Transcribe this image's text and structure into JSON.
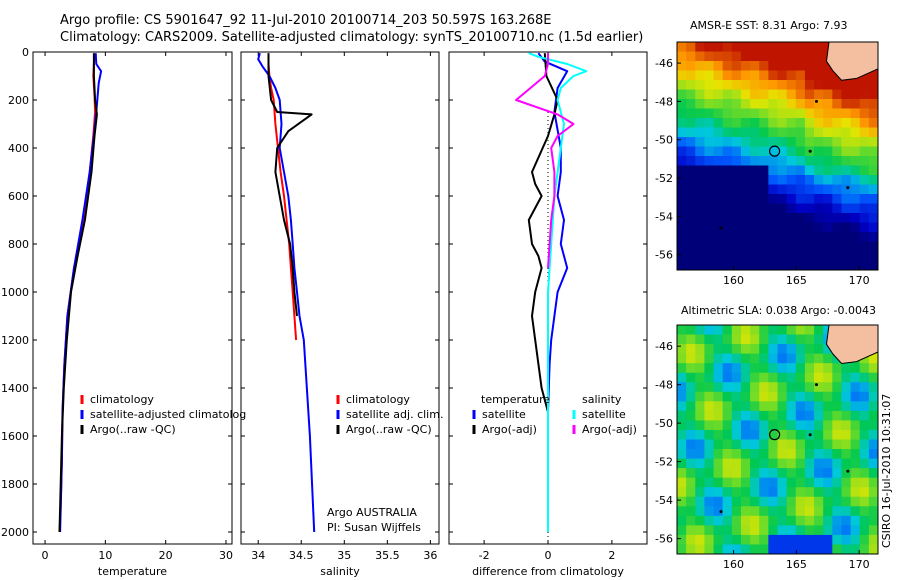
{
  "titles": {
    "line1": "Argo profile: CS 5901647_92 11-Jul-2010 20100714_203 50.597S 163.268E",
    "line2": "Climatology: CARS2009. Satellite-adjusted climatology: synTS_20100710.nc (1.5d earlier)"
  },
  "colors": {
    "climatology": "#ff0000",
    "satellite": "#0000ff",
    "argo": "#000000",
    "sal_satellite": "#00ffff",
    "sal_argo": "#ff00ff",
    "land": "#f4bfa0",
    "marker": "#000000"
  },
  "chart_data": [
    {
      "type": "line",
      "xlabel": "temperature",
      "ylabel": "",
      "xlim": [
        -2,
        31
      ],
      "ylim": [
        2050,
        0
      ],
      "yreversed": true,
      "xticks": [
        0,
        10,
        20,
        30
      ],
      "xtick_labels": [
        "0",
        "10",
        "20",
        "30"
      ],
      "yticks": [
        0,
        200,
        400,
        600,
        800,
        1000,
        1200,
        1400,
        1600,
        1800,
        2000
      ],
      "ytick_labels": [
        "0",
        "200",
        "400",
        "600",
        "800",
        "1000",
        "1200",
        "1400",
        "1600",
        "1800",
        "2000"
      ],
      "legend": {
        "position": "lower-center",
        "entries": [
          "climatology",
          "satellite-adjusted climatolog",
          "Argo(..raw -QC)"
        ]
      },
      "series": [
        {
          "name": "climatology",
          "color": "#ff0000",
          "x": [
            8.2,
            8.1,
            8.0,
            8.2,
            8.3,
            8.0,
            7.4,
            6.3,
            4.8,
            3.7,
            3.2,
            2.9,
            2.8,
            2.6,
            2.4
          ],
          "y": [
            5,
            50,
            100,
            180,
            250,
            350,
            500,
            700,
            900,
            1100,
            1300,
            1500,
            1700,
            1900,
            2000
          ]
        },
        {
          "name": "satellite-adjusted climatolog",
          "color": "#0000ff",
          "x": [
            8.4,
            8.5,
            9.3,
            8.9,
            8.5,
            8.1,
            7.4,
            6.2,
            4.8,
            3.7,
            3.2,
            2.9,
            2.8,
            2.6,
            2.5
          ],
          "y": [
            5,
            50,
            80,
            130,
            250,
            350,
            500,
            700,
            900,
            1100,
            1300,
            1500,
            1700,
            1900,
            2000
          ]
        },
        {
          "name": "Argo(..raw -QC)",
          "color": "#000000",
          "x": [
            8.1,
            8.1,
            8.3,
            8.6,
            8.2,
            7.7,
            6.6,
            5.4,
            4.3,
            3.6,
            3.1,
            2.8,
            2.6,
            2.4
          ],
          "y": [
            5,
            100,
            200,
            260,
            350,
            500,
            700,
            850,
            1000,
            1200,
            1400,
            1600,
            1800,
            2000
          ]
        }
      ]
    },
    {
      "type": "line",
      "xlabel": "salinity",
      "ylabel": "",
      "xlim": [
        33.8,
        36.1
      ],
      "ylim": [
        2050,
        0
      ],
      "yreversed": true,
      "xticks": [
        34,
        34.5,
        35,
        35.5,
        36
      ],
      "xtick_labels": [
        "34",
        "34.5",
        "35",
        "35.5",
        "36"
      ],
      "legend": {
        "position": "lower-right",
        "entries": [
          "climatology",
          "satellite adj. clim.",
          "Argo(..raw -QC)"
        ]
      },
      "annotation": {
        "line1": "Argo AUSTRALIA",
        "line2": "PI: Susan Wijffels"
      },
      "series": [
        {
          "name": "climatology",
          "color": "#ff0000",
          "x": [
            34.12,
            34.12,
            34.13,
            34.15,
            34.18,
            34.2,
            34.23,
            34.26,
            34.3,
            34.33,
            34.36,
            34.38,
            34.4,
            34.42,
            34.44
          ],
          "y": [
            5,
            50,
            100,
            150,
            200,
            300,
            400,
            500,
            600,
            700,
            800,
            900,
            1000,
            1100,
            1200
          ]
        },
        {
          "name": "satellite adj. clim.",
          "color": "#0000ff",
          "x": [
            34.02,
            34.0,
            34.05,
            34.13,
            34.2,
            34.25,
            34.27,
            34.25,
            34.3,
            34.35,
            34.38,
            34.4,
            34.42,
            34.45,
            34.48,
            34.53,
            34.6,
            34.65
          ],
          "y": [
            5,
            30,
            60,
            100,
            150,
            200,
            300,
            400,
            500,
            600,
            700,
            800,
            900,
            1000,
            1100,
            1200,
            1600,
            2000
          ]
        },
        {
          "name": "Argo(..raw -QC)",
          "color": "#000000",
          "x": [
            34.12,
            34.12,
            34.15,
            34.22,
            34.62,
            34.35,
            34.22,
            34.2,
            34.25,
            34.3,
            34.37,
            34.4,
            34.42,
            34.45
          ],
          "y": [
            5,
            100,
            200,
            250,
            260,
            330,
            400,
            500,
            600,
            700,
            800,
            900,
            1000,
            1100
          ]
        }
      ]
    },
    {
      "type": "line",
      "xlabel": "difference from climatology",
      "ylabel": "",
      "xlim": [
        -3.1,
        3.1
      ],
      "ylim": [
        2050,
        0
      ],
      "yreversed": true,
      "xticks": [
        -2,
        0,
        2
      ],
      "xtick_labels": [
        "-2",
        "0",
        "2"
      ],
      "legend": {
        "position": "lower-right",
        "entries": [
          "temperature",
          "satellite",
          "Argo(-adj)",
          "salinity",
          "satellite",
          "Argo(-adj)"
        ]
      },
      "series": [
        {
          "name": "temperature satellite",
          "color": "#0000ff",
          "x": [
            -0.3,
            -0.1,
            0.6,
            0.3,
            0.2,
            0.4,
            0.4,
            0.3,
            0.5,
            0.4,
            0.6,
            0.3,
            0.2,
            0.1,
            0.05,
            0.0,
            0.0
          ],
          "y": [
            5,
            40,
            80,
            150,
            250,
            400,
            500,
            600,
            700,
            800,
            900,
            1000,
            1100,
            1200,
            1300,
            1500,
            2000
          ]
        },
        {
          "name": "temperature Argo(-adj)",
          "color": "#000000",
          "x": [
            -0.1,
            -0.05,
            0.3,
            0.2,
            0.0,
            -0.5,
            -0.4,
            -0.2,
            -0.4,
            -0.6,
            -0.5,
            -0.3,
            -0.2,
            -0.4,
            -0.5,
            -0.4,
            -0.3,
            -0.2,
            -0.1,
            0.0
          ],
          "y": [
            5,
            100,
            200,
            260,
            350,
            500,
            550,
            600,
            650,
            700,
            800,
            850,
            900,
            1000,
            1100,
            1200,
            1300,
            1400,
            1450,
            1500
          ]
        },
        {
          "name": "salinity satellite",
          "color": "#00ffff",
          "x": [
            -0.6,
            -0.3,
            0.6,
            1.2,
            0.8,
            0.4,
            0.3,
            0.5,
            0.4,
            0.3,
            0.2,
            0.15,
            0.1,
            0.05,
            0.0,
            0.0,
            0.0,
            0.0
          ],
          "y": [
            5,
            20,
            50,
            80,
            100,
            150,
            200,
            300,
            400,
            500,
            600,
            700,
            800,
            900,
            1000,
            1200,
            1600,
            2000
          ]
        },
        {
          "name": "salinity Argo(-adj)",
          "color": "#ff00ff",
          "x": [
            0.0,
            0.0,
            -0.1,
            -1.0,
            0.3,
            0.8,
            0.3,
            0.1,
            0.2,
            0.2,
            0.1,
            0.05,
            0.0
          ],
          "y": [
            5,
            50,
            100,
            200,
            260,
            300,
            350,
            400,
            500,
            600,
            700,
            800,
            900
          ]
        }
      ],
      "zero_line": {
        "x": 0,
        "style": "dotted"
      }
    }
  ],
  "maps": [
    {
      "title": "AMSR-E SST: 8.31 Argo: 7.93",
      "xlim": [
        155.5,
        171.5
      ],
      "ylim": [
        -56.8,
        -44.9
      ],
      "xticks": [
        160,
        165,
        170
      ],
      "xtick_labels": [
        "160",
        "165",
        "170"
      ],
      "yticks": [
        -46,
        -48,
        -50,
        -52,
        -54,
        -56
      ],
      "ytick_labels": [
        "-46",
        "-48",
        "-50",
        "-52",
        "-54",
        "-56"
      ],
      "float_position": {
        "lon": 163.268,
        "lat": -50.597
      },
      "scheme": "sst"
    },
    {
      "title": "Altimetric SLA: 0.038 Argo: -0.0043",
      "xlim": [
        155.5,
        171.5
      ],
      "ylim": [
        -56.8,
        -44.9
      ],
      "xticks": [
        160,
        165,
        170
      ],
      "xtick_labels": [
        "160",
        "165",
        "170"
      ],
      "yticks": [
        -46,
        -48,
        -50,
        -52,
        -54,
        -56
      ],
      "ytick_labels": [
        "-46",
        "-48",
        "-50",
        "-52",
        "-54",
        "-56"
      ],
      "float_position": {
        "lon": 163.268,
        "lat": -50.597
      },
      "scheme": "sla",
      "side_label": "CSIRO 16-Jul-2010 10:31:07"
    }
  ]
}
